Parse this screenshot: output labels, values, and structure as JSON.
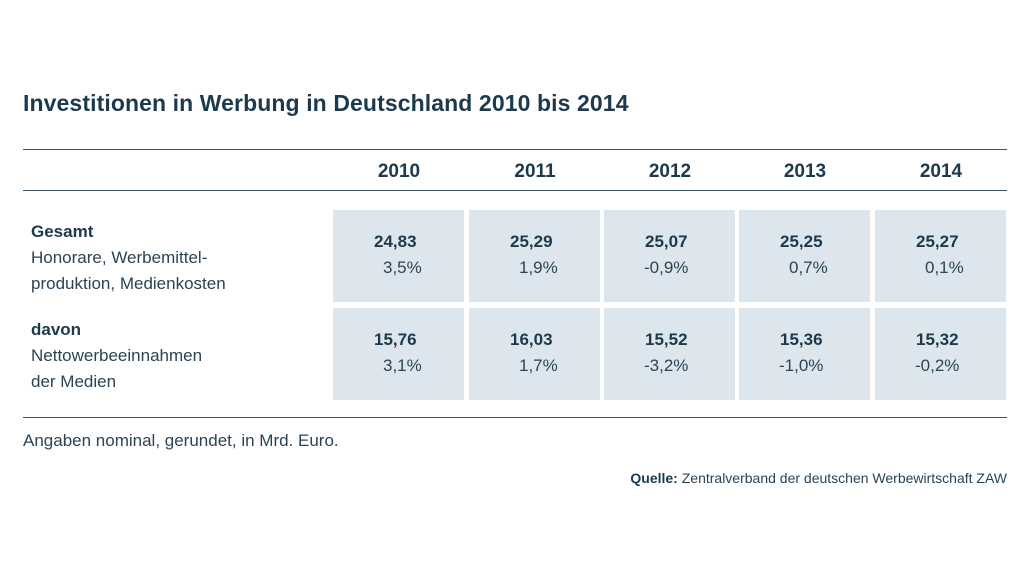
{
  "title": "Investitionen in Werbung in Deutschland 2010 bis 2014",
  "years": [
    "2010",
    "2011",
    "2012",
    "2013",
    "2014"
  ],
  "rows": [
    {
      "heading": "Gesamt",
      "lines": [
        "Honorare, Werbemittel-",
        "produktion, Medienkosten"
      ],
      "values": [
        "24,83",
        "25,29",
        "25,07",
        "25,25",
        "25,27"
      ],
      "changes": [
        "3,5%",
        "1,9%",
        "-0,9%",
        "0,7%",
        "0,1%"
      ]
    },
    {
      "heading": "davon",
      "lines": [
        "Nettowerbeeinnahmen",
        "der Medien"
      ],
      "values": [
        "15,76",
        "16,03",
        "15,52",
        "15,36",
        "15,32"
      ],
      "changes": [
        "3,1%",
        "1,7%",
        "-3,2%",
        "-1,0%",
        "-0,2%"
      ]
    }
  ],
  "note": "Angaben nominal, gerundet, in Mrd. Euro.",
  "source": {
    "label": "Quelle:",
    "text": " Zentralverband der deutschen Werbewirtschaft ZAW"
  },
  "colors": {
    "text_dark": "#1c3a4c",
    "cell_background": "#dde6ed",
    "rule": "#3a5566"
  }
}
